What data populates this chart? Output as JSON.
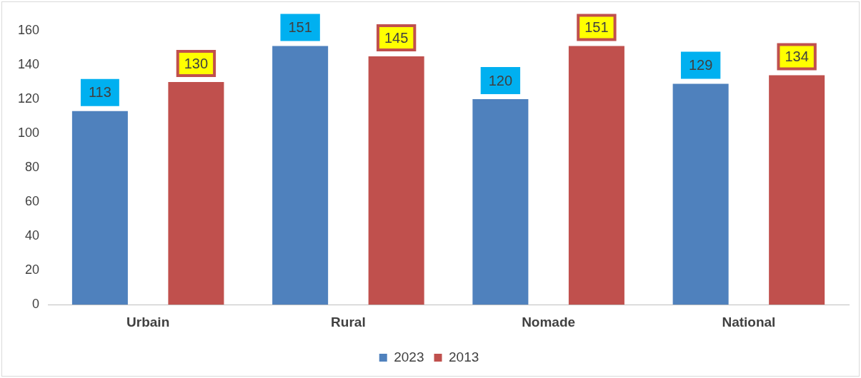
{
  "chart_data": {
    "type": "bar",
    "categories": [
      "Urbain",
      "Rural",
      "Nomade",
      "National"
    ],
    "series": [
      {
        "name": "2023",
        "color": "#4f81bd",
        "values": [
          113,
          151,
          120,
          129
        ]
      },
      {
        "name": "2013",
        "color": "#c0504d",
        "values": [
          130,
          145,
          151,
          134
        ]
      }
    ],
    "ylim": [
      0,
      160
    ],
    "yticks": [
      0,
      20,
      40,
      60,
      80,
      100,
      120,
      140,
      160
    ],
    "grid": false,
    "legend": "bottom",
    "data_labels": true
  }
}
